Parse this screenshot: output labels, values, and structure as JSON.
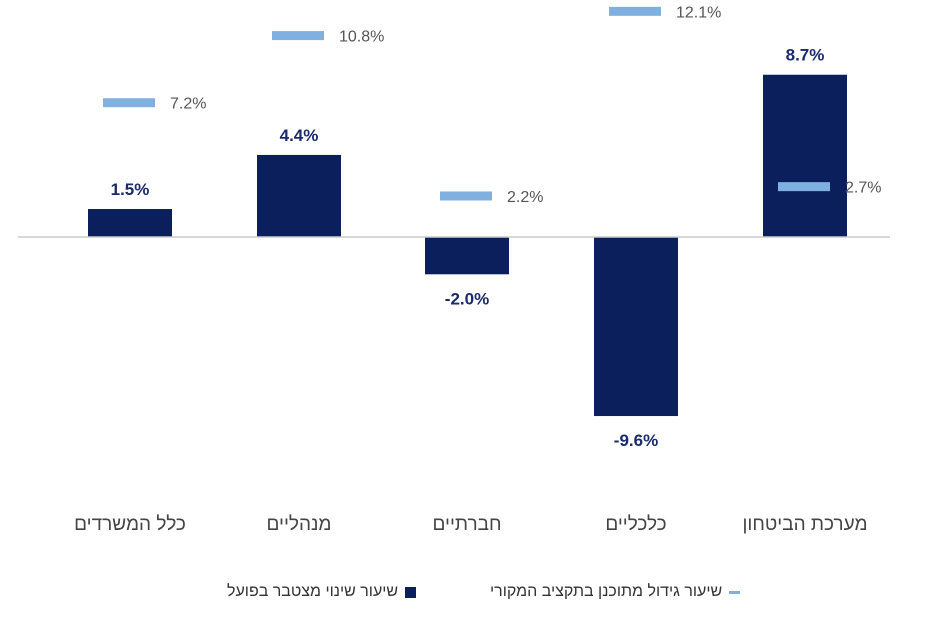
{
  "chart_data": {
    "type": "bar",
    "categories": [
      "כלל המשרדים",
      "מנהליים",
      "חברתיים",
      "כלכליים",
      "מערכת הביטחון"
    ],
    "series": [
      {
        "name": "שיעור שינוי מצטבר בפועל",
        "kind": "bar",
        "values": [
          1.5,
          4.4,
          -2.0,
          -9.6,
          8.7
        ],
        "labels": [
          "1.5%",
          "4.4%",
          "-2.0%",
          "-9.6%",
          "8.7%"
        ]
      },
      {
        "name": "שיעור גידול מתוכנן בתקציב המקורי",
        "kind": "marker",
        "values": [
          7.2,
          10.8,
          2.2,
          12.1,
          2.7
        ],
        "labels": [
          "7.2%",
          "10.8%",
          "2.2%",
          "12.1%",
          "2.7%"
        ]
      }
    ],
    "colors": {
      "bar": "#0a1f5c",
      "marker": "#7fb0e0",
      "axis": "#cccccc",
      "bar_label": "#1a2a6c",
      "marker_label": "#555555",
      "category_label": "#444444"
    },
    "ylim": [
      -13.5,
      14
    ],
    "grid": false,
    "legend_position": "bottom"
  },
  "legend": {
    "actual": "שיעור שינוי מצטבר בפועל",
    "planned": "שיעור גידול מתוכנן בתקציב המקורי"
  }
}
